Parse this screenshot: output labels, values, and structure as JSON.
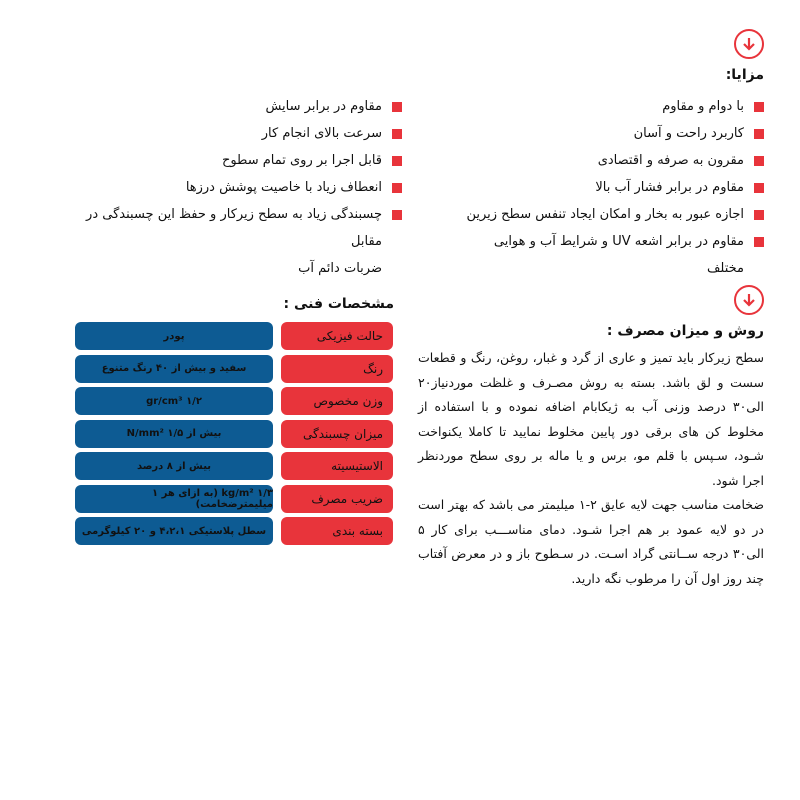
{
  "colors": {
    "accent": "#e8343b",
    "table_value_bg": "#0d5b93"
  },
  "icons": {
    "section_icon": "circle-arrow-down-icon",
    "bullet": "red-square"
  },
  "advantages": {
    "title": "مزایا:",
    "right_items": [
      "با دوام و مقاوم",
      "کاربرد راحت و آسان",
      "مقرون به صرفه و اقتصادی",
      "مقاوم در برابر فشار آب بالا",
      "اجازه عبور به بخار و امکان ایجاد تنفس سطح زیرین",
      "مقاوم در برابر اشعه UV و شرایط آب و هوایی مختلف"
    ],
    "left_items": [
      "مقاوم در برابر سایش",
      "سرعت بالای انجام کار",
      "قابل اجرا بر روی تمام سطوح",
      "انعطاف زیاد با خاصیت پوشش درزها",
      "چسبندگی زیاد به سطح زیرکار و حفظ این چسبندگی در مقابل"
    ],
    "left_last_continuation": "ضربات دائم آب"
  },
  "usage": {
    "title": "روش و میزان مصرف :",
    "paragraph1": "سطح زیرکار باید تمیز و عاری از گرد و غبار، روغن، رنگ و قطعات سست و لق باشد. بسته به روش مصـرف و غلظت موردنیاز۲۰ الی۳۰ درصد وزنی آب به ژیکابام اضافه نموده و با استفاده از مخلوط کن های برقی دور پایین مخلوط نمایید تا کاملا یکنواخت شـود، سـپس با قلم مو، برس و یا ماله بر روی سطح موردنظر اجرا شود.",
    "paragraph2": "ضخامت مناسب جهت لایه عایق ۲-۱ میلیمتر می باشد که بهتر است در دو لایه عمود بر هم اجرا شـود. دمای مناســـب برای کار ۵ الی۳۰ درجه ســانتی گراد اسـت. در سـطوح باز و در معرض آفتاب چند روز اول آن را مرطوب نگه دارید."
  },
  "specs": {
    "title": "مشخصات فنی :",
    "rows": [
      {
        "label": "حالت فیزیکی",
        "value": "پودر"
      },
      {
        "label": "رنگ",
        "value": "سفید و بیش از ۴۰ رنگ متنوع"
      },
      {
        "label": "وزن مخصوص",
        "value": "۱/۲ gr/cm³"
      },
      {
        "label": "میزان چسبندگی",
        "value": "بیش از N/mm² ۱/۵"
      },
      {
        "label": "الاستیسیته",
        "value": "بیش از ۸ درصد"
      },
      {
        "label": "ضریب مصرف",
        "value": "۱/۳ kg/m² (به ازای هر ۱ میلیمترضخامت)"
      },
      {
        "label": "بسته بندی",
        "value": "سطل پلاستیکی ۴،۲،۱ و ۲۰ کیلوگرمی"
      }
    ]
  }
}
